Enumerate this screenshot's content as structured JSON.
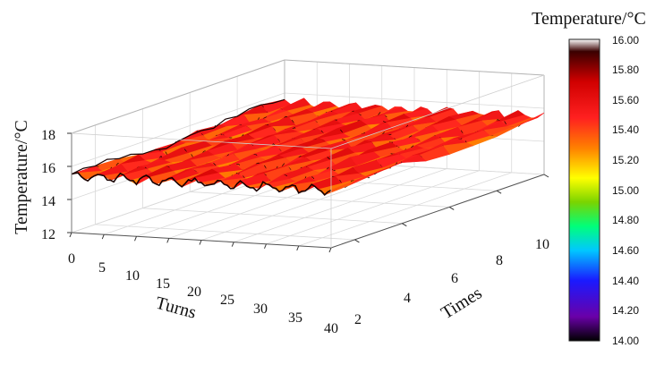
{
  "chart_data": {
    "type": "surface3d",
    "title": "",
    "xlabel": "Turns",
    "ylabel": "Times",
    "zlabel": "Temperature/°C",
    "x_ticks": [
      "0",
      "5",
      "10",
      "15",
      "20",
      "25",
      "30",
      "35",
      "40"
    ],
    "y_ticks": [
      "2",
      "4",
      "6",
      "8",
      "10"
    ],
    "z_ticks": [
      "12",
      "14",
      "16",
      "18"
    ],
    "xlim": [
      0,
      40
    ],
    "ylim": [
      1,
      10
    ],
    "zlim": [
      12,
      18
    ],
    "grid": true,
    "z_range_shown": [
      15.0,
      15.9
    ],
    "z_mean": 15.45,
    "colorbar": {
      "title": "Temperature/°C",
      "range": [
        14.0,
        16.0
      ],
      "ticks": [
        "14.00",
        "14.20",
        "14.40",
        "14.60",
        "14.80",
        "15.00",
        "15.20",
        "15.40",
        "15.60",
        "15.80",
        "16.00"
      ],
      "colors": [
        "#000000",
        "#6a00a8",
        "#1a1aff",
        "#00c8ff",
        "#00ff7a",
        "#7ad400",
        "#ffff00",
        "#ff8000",
        "#ff2020",
        "#d00000",
        "#3a0000",
        "#ffffff"
      ]
    }
  }
}
